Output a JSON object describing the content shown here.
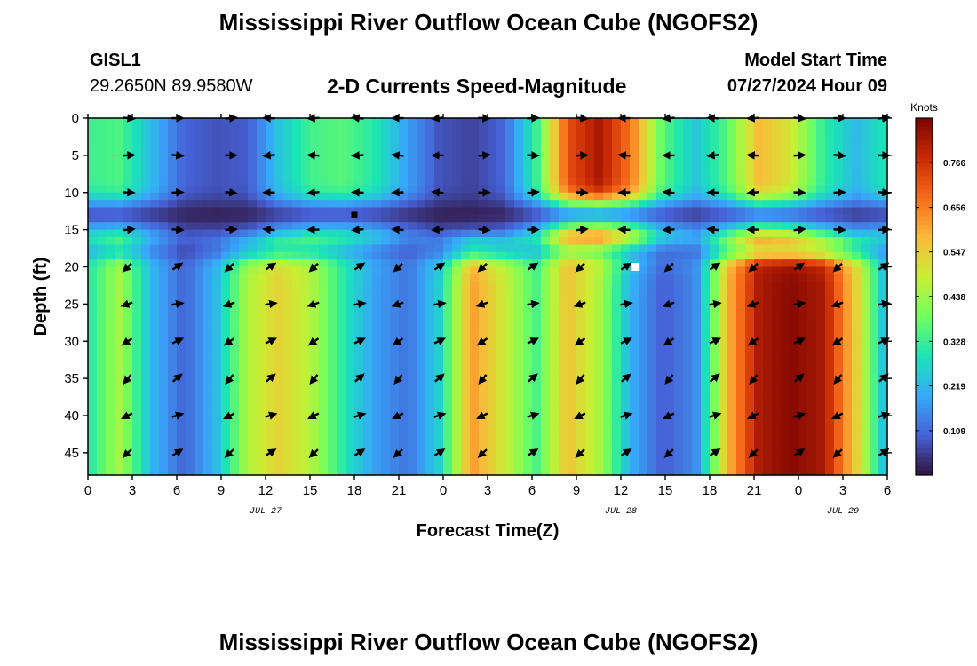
{
  "header": {
    "title": "Mississippi River Outflow Ocean Cube (NGOFS2)",
    "footer_title": "Mississippi River Outflow Ocean Cube (NGOFS2)",
    "station": "GISL1",
    "coordinates": "29.2650N  89.9580W",
    "subtitle": "2-D Currents Speed-Magnitude",
    "model_start_label": "Model Start Time",
    "model_start_value": "07/27/2024 Hour 09"
  },
  "colors": {
    "colormap": [
      "#30123b",
      "#4662d7",
      "#36aaf9",
      "#1ae4b6",
      "#72fe5e",
      "#c8ef34",
      "#faba39",
      "#f66b19",
      "#ca2a04",
      "#7a0403"
    ],
    "arrow": "#000000",
    "marker_square": "#000000",
    "marker_white": "#ffffff"
  },
  "chart_data": {
    "type": "heatmap",
    "xlabel": "Forecast Time(Z)",
    "ylabel": "Depth (ft)",
    "x_range": [
      0,
      54
    ],
    "y_range": [
      0,
      48
    ],
    "y_inverted": true,
    "x_ticks": [
      0,
      3,
      6,
      9,
      12,
      15,
      18,
      21,
      24,
      27,
      30,
      33,
      36,
      39,
      42,
      45,
      48,
      51,
      54
    ],
    "x_tick_labels": [
      "0",
      "3",
      "6",
      "9",
      "12",
      "15",
      "18",
      "21",
      "0",
      "3",
      "6",
      "9",
      "12",
      "15",
      "18",
      "21",
      "0",
      "3",
      "6"
    ],
    "y_ticks": [
      0,
      5,
      10,
      15,
      20,
      25,
      30,
      35,
      40,
      45
    ],
    "y_tick_labels": [
      "0",
      "5",
      "10",
      "15",
      "20",
      "25",
      "30",
      "35",
      "40",
      "45"
    ],
    "date_labels": [
      {
        "x": 12,
        "label": "JUL 27"
      },
      {
        "x": 36,
        "label": "JUL 28"
      },
      {
        "x": 51,
        "label": "JUL 29"
      }
    ],
    "colorbar": {
      "label": "Knots",
      "min": 0.0,
      "max": 0.875,
      "ticks": [
        0.109,
        0.219,
        0.328,
        0.438,
        0.547,
        0.656,
        0.766
      ],
      "tick_labels": [
        "0.109",
        "0.219",
        "0.328",
        "0.438",
        "0.547",
        "0.656",
        "0.766"
      ]
    },
    "arrow_times": [
      2.7,
      6.0,
      9.6,
      12.3,
      15.3,
      18.3,
      21.0,
      23.7,
      26.7,
      30.0,
      33.3,
      36.3,
      39.3,
      42.3,
      45.0,
      48.0,
      50.7,
      53.7
    ],
    "arrow_depths": [
      0,
      5,
      10,
      15,
      20,
      25,
      30,
      35,
      40,
      45
    ],
    "time_profile_upper": [
      0.33,
      0.35,
      0.22,
      0.1,
      0.08,
      0.09,
      0.24,
      0.34,
      0.36,
      0.3,
      0.18,
      0.08,
      0.06,
      0.1,
      0.32,
      0.72,
      0.82,
      0.66,
      0.36,
      0.24,
      0.36,
      0.58,
      0.5,
      0.32,
      0.22,
      0.3
    ],
    "time_profile_lower": [
      0.3,
      0.45,
      0.22,
      0.1,
      0.22,
      0.46,
      0.54,
      0.46,
      0.3,
      0.18,
      0.12,
      0.26,
      0.62,
      0.5,
      0.34,
      0.57,
      0.45,
      0.2,
      0.09,
      0.15,
      0.58,
      0.82,
      0.86,
      0.82,
      0.55,
      0.2
    ],
    "markers": [
      {
        "type": "black-square",
        "time": 18.0,
        "depth": 13
      },
      {
        "type": "white-square",
        "time": 37.0,
        "depth": 20
      }
    ]
  }
}
